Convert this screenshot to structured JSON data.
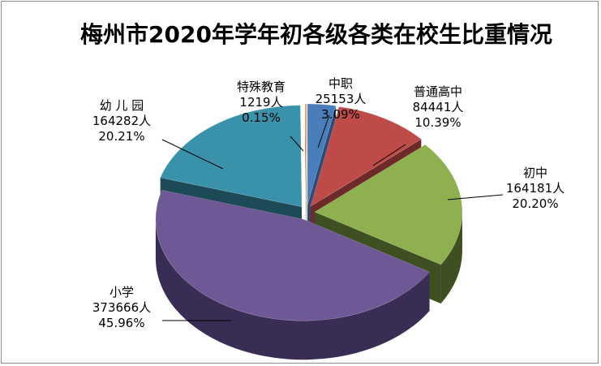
{
  "chart_data": {
    "type": "pie",
    "title": "梅州市2020年学年初各级各类在校生比重情况",
    "slices": [
      {
        "name": "中职",
        "value_text": "25153人",
        "value": 25153,
        "percent_text": "3.09%",
        "percent": 3.09,
        "color": "#4a7ebb",
        "dark": "#2b4c75"
      },
      {
        "name": "普通高中",
        "value_text": "84441人",
        "value": 84441,
        "percent_text": "10.39%",
        "percent": 10.39,
        "color": "#be4b48",
        "dark": "#6d2a28"
      },
      {
        "name": "初中",
        "value_text": "164181人",
        "value": 164181,
        "percent_text": "20.20%",
        "percent": 20.2,
        "color": "#8eb04f",
        "dark": "#3e4f21"
      },
      {
        "name": "小学",
        "value_text": "373666人",
        "value": 373666,
        "percent_text": "45.96%",
        "percent": 45.96,
        "color": "#6e5896",
        "dark": "#3a2d55"
      },
      {
        "name": "幼 儿 园",
        "value_text": "164282人",
        "value": 164282,
        "percent_text": "20.21%",
        "percent": 20.21,
        "color": "#3a92aa",
        "dark": "#1c4a56"
      },
      {
        "name": "特殊教育",
        "value_text": "1219人",
        "value": 1219,
        "percent_text": "0.15%",
        "percent": 0.15,
        "color": "#e4892c",
        "dark": "#8a4f14"
      }
    ]
  }
}
